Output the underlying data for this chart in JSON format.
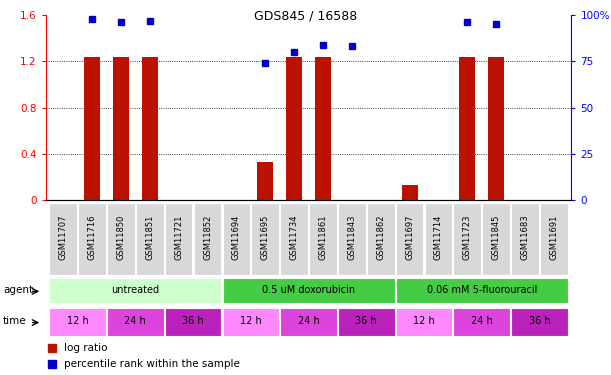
{
  "title": "GDS845 / 16588",
  "samples": [
    "GSM11707",
    "GSM11716",
    "GSM11850",
    "GSM11851",
    "GSM11721",
    "GSM11852",
    "GSM11694",
    "GSM11695",
    "GSM11734",
    "GSM11861",
    "GSM11843",
    "GSM11862",
    "GSM11697",
    "GSM11714",
    "GSM11723",
    "GSM11845",
    "GSM11683",
    "GSM11691"
  ],
  "log_ratio": [
    0,
    1.24,
    1.24,
    1.24,
    0,
    0,
    0,
    0.33,
    1.24,
    1.24,
    0,
    0,
    0.13,
    0,
    1.24,
    1.24,
    0,
    0
  ],
  "percentile_rank": [
    null,
    98,
    96,
    97,
    null,
    null,
    null,
    74,
    80,
    84,
    83,
    null,
    null,
    null,
    96,
    95,
    null,
    null
  ],
  "agent_groups": [
    {
      "label": "untreated",
      "start": 0,
      "end": 6,
      "color": "#ccffcc"
    },
    {
      "label": "0.5 uM doxorubicin",
      "start": 6,
      "end": 12,
      "color": "#44cc44"
    },
    {
      "label": "0.06 mM 5-fluorouracil",
      "start": 12,
      "end": 18,
      "color": "#44cc44"
    }
  ],
  "time_groups": [
    {
      "label": "12 h",
      "start": 0,
      "end": 2,
      "color": "#ff88ff"
    },
    {
      "label": "24 h",
      "start": 2,
      "end": 4,
      "color": "#dd44dd"
    },
    {
      "label": "36 h",
      "start": 4,
      "end": 6,
      "color": "#bb22bb"
    },
    {
      "label": "12 h",
      "start": 6,
      "end": 8,
      "color": "#ff88ff"
    },
    {
      "label": "24 h",
      "start": 8,
      "end": 10,
      "color": "#dd44dd"
    },
    {
      "label": "36 h",
      "start": 10,
      "end": 12,
      "color": "#bb22bb"
    },
    {
      "label": "12 h",
      "start": 12,
      "end": 14,
      "color": "#ff88ff"
    },
    {
      "label": "24 h",
      "start": 14,
      "end": 16,
      "color": "#dd44dd"
    },
    {
      "label": "36 h",
      "start": 16,
      "end": 18,
      "color": "#bb22bb"
    }
  ],
  "bar_color": "#bb1100",
  "dot_color": "#0000cc",
  "ylim_left": [
    0,
    1.6
  ],
  "ylim_right": [
    0,
    100
  ],
  "yticks_left": [
    0,
    0.4,
    0.8,
    1.2,
    1.6
  ],
  "yticks_right": [
    0,
    25,
    50,
    75,
    100
  ],
  "ytick_labels_left": [
    "0",
    "0.4",
    "0.8",
    "1.2",
    "1.6"
  ],
  "ytick_labels_right": [
    "0",
    "25",
    "50",
    "75",
    "100%"
  ],
  "bar_width": 0.55
}
